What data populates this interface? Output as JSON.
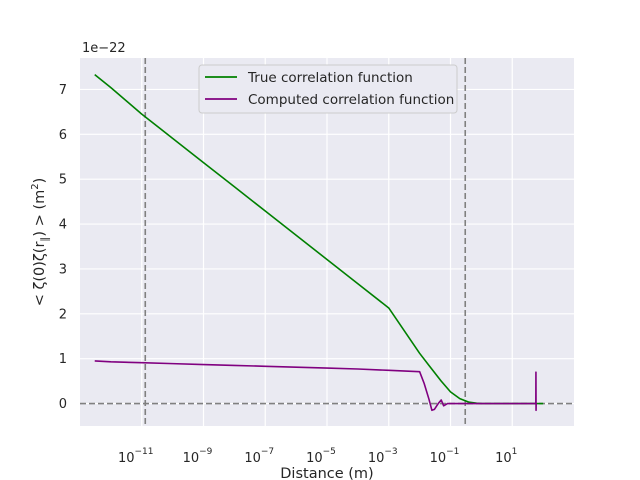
{
  "chart_data": {
    "type": "line",
    "title": "",
    "xlabel": "Distance (m)",
    "ylabel_parts": [
      "< ζ(0)ζ(r",
      "∥",
      ") > (m",
      "2",
      ")"
    ],
    "offset_text": "1e−22",
    "xscale": "log",
    "xlim": [
      1e-13,
      1000
    ],
    "ylim": [
      -0.5,
      7.7
    ],
    "y_unit_multiplier": "1e-22",
    "xticks": [
      {
        "exp": "−11",
        "value": 1e-11
      },
      {
        "exp": "−9",
        "value": 1e-09
      },
      {
        "exp": "−7",
        "value": 1e-07
      },
      {
        "exp": "−5",
        "value": 1e-05
      },
      {
        "exp": "−3",
        "value": 0.001
      },
      {
        "exp": "−1",
        "value": 0.1
      },
      {
        "exp": "1",
        "value": 10
      }
    ],
    "xtick_base": "10",
    "yticks": [
      0,
      1,
      2,
      3,
      4,
      5,
      6,
      7
    ],
    "grid": true,
    "legend_position": "top-center",
    "vlines": [
      1.3e-11,
      0.3
    ],
    "hline": 0,
    "series": [
      {
        "name": "True correlation function",
        "color": "#008000",
        "x": [
          3e-13,
          1e-12,
          1e-11,
          1e-10,
          1e-09,
          1e-08,
          1e-07,
          1e-06,
          1e-05,
          0.0001,
          0.001,
          0.01,
          0.02,
          0.05,
          0.1,
          0.2,
          0.4,
          0.7,
          1,
          2,
          5,
          10,
          50,
          100
        ],
        "y": [
          7.33,
          7.04,
          6.45,
          5.91,
          5.37,
          4.83,
          4.29,
          3.75,
          3.21,
          2.67,
          2.13,
          1.12,
          0.85,
          0.5,
          0.26,
          0.11,
          0.03,
          0.01,
          0.0,
          0.0,
          0.0,
          0.0,
          0.0,
          0.0
        ]
      },
      {
        "name": "Computed correlation function",
        "color": "#800080",
        "x": [
          3e-13,
          1e-12,
          1e-11,
          1e-10,
          1e-09,
          1e-08,
          1e-07,
          1e-06,
          1e-05,
          0.0001,
          0.001,
          0.01,
          0.014,
          0.02,
          0.025,
          0.03,
          0.04,
          0.05,
          0.06,
          0.08,
          0.1,
          0.2,
          0.5,
          1,
          5,
          20,
          58,
          58.5,
          59,
          59.5
        ],
        "y": [
          0.95,
          0.93,
          0.91,
          0.89,
          0.87,
          0.85,
          0.83,
          0.81,
          0.79,
          0.77,
          0.74,
          0.71,
          0.45,
          0.1,
          -0.15,
          -0.13,
          0.0,
          0.08,
          -0.05,
          0.0,
          0.0,
          0.0,
          0.0,
          0.0,
          0.0,
          0.0,
          0.0,
          0.7,
          -0.15,
          0.0
        ]
      }
    ]
  }
}
